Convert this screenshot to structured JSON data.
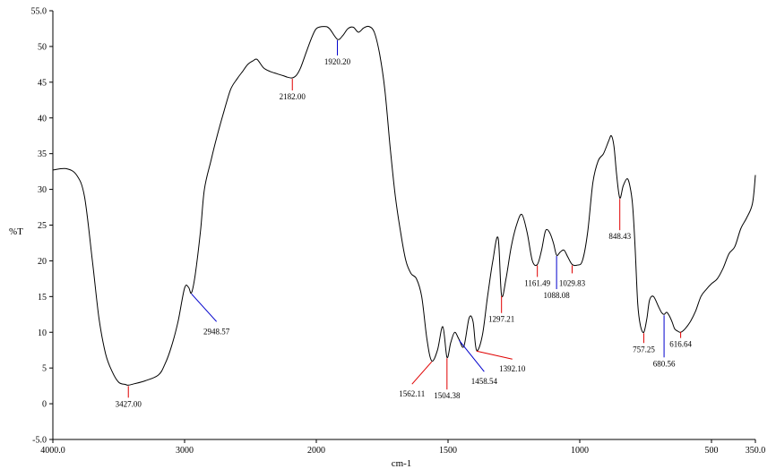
{
  "chart_data": {
    "type": "line",
    "xlabel": "cm-1",
    "ylabel": "%T",
    "xlim": [
      4000.0,
      350.0
    ],
    "ylim": [
      -5.0,
      55.0
    ],
    "x_reversed": true,
    "grid": false,
    "x_ticks": [
      4000,
      3000,
      2000,
      1500,
      1000,
      500,
      350
    ],
    "x_tick_labels": [
      "4000.0",
      "3000",
      "2000",
      "1500",
      "1000",
      "500",
      "350.0"
    ],
    "y_ticks": [
      -5,
      0,
      5,
      10,
      15,
      20,
      25,
      30,
      35,
      40,
      45,
      50,
      55
    ],
    "y_tick_labels": [
      "-5.0",
      "0",
      "5",
      "10",
      "15",
      "20",
      "25",
      "30",
      "35",
      "40",
      "45",
      "50",
      "55.0"
    ],
    "series": [
      {
        "color": "#000000",
        "x": [
          4000,
          3900,
          3820,
          3760,
          3700,
          3650,
          3600,
          3550,
          3500,
          3450,
          3427,
          3380,
          3300,
          3200,
          3150,
          3100,
          3050,
          3000,
          2970,
          2948,
          2920,
          2880,
          2850,
          2800,
          2760,
          2700,
          2650,
          2600,
          2560,
          2520,
          2480,
          2450,
          2400,
          2350,
          2300,
          2250,
          2220,
          2182,
          2150,
          2120,
          2080,
          2040,
          2000,
          1970,
          1950,
          1920,
          1900,
          1880,
          1860,
          1840,
          1820,
          1800,
          1780,
          1760,
          1740,
          1720,
          1700,
          1680,
          1660,
          1640,
          1620,
          1600,
          1580,
          1562,
          1540,
          1520,
          1504,
          1490,
          1475,
          1458,
          1440,
          1420,
          1405,
          1392,
          1370,
          1350,
          1330,
          1310,
          1297,
          1280,
          1260,
          1240,
          1220,
          1200,
          1180,
          1161,
          1145,
          1130,
          1115,
          1100,
          1088,
          1075,
          1060,
          1045,
          1029,
          1010,
          990,
          970,
          950,
          930,
          910,
          890,
          880,
          870,
          860,
          848,
          835,
          820,
          810,
          800,
          790,
          780,
          770,
          757,
          745,
          735,
          720,
          700,
          690,
          680,
          670,
          660,
          650,
          640,
          630,
          617,
          600,
          580,
          560,
          540,
          520,
          500,
          480,
          460,
          440,
          420,
          400,
          380,
          360,
          350
        ],
        "y": [
          32.7,
          32.9,
          32.0,
          29.0,
          20.0,
          12.0,
          7.0,
          4.5,
          3.0,
          2.7,
          2.6,
          2.8,
          3.2,
          4.0,
          5.5,
          8.0,
          11.5,
          16.2,
          16.3,
          15.5,
          18.0,
          24.0,
          30.0,
          34.0,
          37.0,
          41.0,
          44.0,
          45.5,
          46.5,
          47.5,
          48.0,
          48.2,
          47.0,
          46.5,
          46.2,
          45.9,
          45.7,
          45.6,
          46.0,
          47.0,
          49.0,
          51.0,
          52.5,
          52.8,
          52.5,
          51.0,
          51.5,
          52.5,
          52.7,
          52.0,
          52.6,
          52.8,
          52.0,
          49.0,
          44.0,
          36.0,
          29.0,
          24.0,
          20.0,
          18.2,
          17.5,
          15.0,
          9.0,
          6.0,
          7.5,
          10.8,
          6.5,
          8.5,
          10.0,
          9.0,
          8.0,
          12.0,
          11.5,
          7.5,
          9.5,
          15.0,
          20.0,
          23.2,
          15.2,
          17.5,
          22.0,
          25.0,
          26.5,
          24.0,
          20.0,
          19.5,
          21.5,
          24.2,
          24.0,
          22.5,
          20.8,
          21.2,
          21.5,
          20.5,
          19.5,
          19.4,
          20.0,
          24.0,
          31.0,
          34.0,
          35.0,
          36.8,
          37.5,
          36.0,
          32.0,
          28.8,
          30.5,
          31.5,
          30.5,
          28.0,
          22.0,
          14.0,
          11.0,
          10.0,
          12.0,
          14.5,
          15.0,
          13.5,
          12.8,
          12.5,
          12.8,
          12.3,
          11.5,
          10.5,
          10.2,
          10.0,
          10.5,
          11.5,
          13.0,
          15.0,
          16.0,
          16.8,
          17.5,
          19.0,
          21.0,
          22.0,
          24.5,
          26.0,
          28.0,
          32.0
        ]
      }
    ],
    "annotations": [
      {
        "label": "3427.00",
        "x": 3427,
        "y": 2.6,
        "color": "red"
      },
      {
        "label": "2948.57",
        "x": 2948,
        "y": 15.5,
        "color": "blue"
      },
      {
        "label": "2182.00",
        "x": 2182,
        "y": 45.6,
        "color": "red"
      },
      {
        "label": "1920.20",
        "x": 1920,
        "y": 51.0,
        "color": "blue"
      },
      {
        "label": "1562.11",
        "x": 1562,
        "y": 6.0,
        "color": "red"
      },
      {
        "label": "1504.38",
        "x": 1504,
        "y": 6.5,
        "color": "red"
      },
      {
        "label": "1458.54",
        "x": 1458,
        "y": 9.0,
        "color": "blue"
      },
      {
        "label": "1392.10",
        "x": 1392,
        "y": 7.5,
        "color": "red"
      },
      {
        "label": "1297.21",
        "x": 1297,
        "y": 15.2,
        "color": "red"
      },
      {
        "label": "1161.49",
        "x": 1161,
        "y": 19.5,
        "color": "red"
      },
      {
        "label": "1088.08",
        "x": 1088,
        "y": 20.8,
        "color": "blue"
      },
      {
        "label": "1029.83",
        "x": 1029,
        "y": 19.5,
        "color": "red"
      },
      {
        "label": "848.43",
        "x": 848,
        "y": 28.8,
        "color": "red"
      },
      {
        "label": "757.25",
        "x": 757,
        "y": 10.0,
        "color": "red"
      },
      {
        "label": "680.56",
        "x": 680,
        "y": 12.5,
        "color": "blue"
      },
      {
        "label": "616.64",
        "x": 617,
        "y": 10.2,
        "color": "red"
      }
    ]
  }
}
